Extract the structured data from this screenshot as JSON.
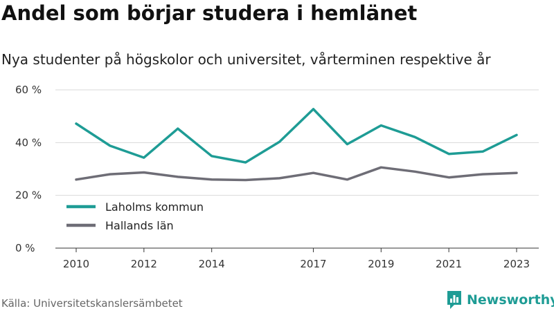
{
  "header": {
    "title": "Andel som börjar studera i hemlänet",
    "subtitle": "Nya studenter på högskolor och universitet, vårterminen respektive år"
  },
  "footer": {
    "source": "Källa: Universitetskanslersämbetet",
    "brand": "Newsworthy",
    "brand_icon": "bar-chart-speech-icon",
    "brand_color": "#1e9c95"
  },
  "chart_data": {
    "type": "line",
    "title": "Andel som börjar studera i hemlänet",
    "subtitle": "Nya studenter på högskolor och universitet, vårterminen respektive år",
    "xlabel": "",
    "ylabel": "",
    "x": [
      2010,
      2011,
      2012,
      2013,
      2014,
      2015,
      2016,
      2017,
      2018,
      2019,
      2020,
      2021,
      2022,
      2023
    ],
    "xticks": [
      2010,
      2012,
      2014,
      2017,
      2019,
      2021,
      2023
    ],
    "ylim": [
      0,
      60
    ],
    "yticks": [
      0,
      20,
      40,
      60
    ],
    "ytick_labels": [
      "0 %",
      "20 %",
      "40 %",
      "60 %"
    ],
    "grid": "horizontal",
    "legend": "bottom-left",
    "series": [
      {
        "name": "Laholms kommun",
        "color": "#1e9c95",
        "values": [
          47.2,
          38.8,
          34.3,
          45.3,
          34.9,
          32.5,
          40.3,
          52.7,
          39.4,
          46.5,
          42.1,
          35.7,
          36.6,
          42.9
        ]
      },
      {
        "name": "Hallands län",
        "color": "#6e6d76",
        "values": [
          26.0,
          28.0,
          28.7,
          27.0,
          26.0,
          25.8,
          26.5,
          28.5,
          26.0,
          30.6,
          29.0,
          26.8,
          28.0,
          28.5
        ]
      }
    ]
  }
}
